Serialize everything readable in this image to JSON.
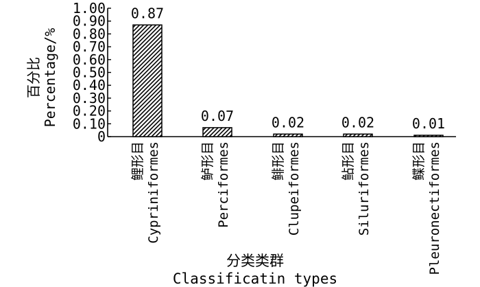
{
  "chart_data": {
    "type": "bar",
    "categories": [
      {
        "zh": "鲤形目",
        "en": "Cypriniformes"
      },
      {
        "zh": "鲈形目",
        "en": "Perciformes"
      },
      {
        "zh": "鲱形目",
        "en": "Clupeiformes"
      },
      {
        "zh": "鲇形目",
        "en": "Siluriformes"
      },
      {
        "zh": "鲽形目",
        "en": "Pleuronectiformes"
      }
    ],
    "values": [
      0.87,
      0.07,
      0.02,
      0.02,
      0.01
    ],
    "value_labels": [
      "0.87",
      "0.07",
      "0.02",
      "0.02",
      "0.01"
    ],
    "ylabel_zh": "百分比",
    "ylabel_en": "Percentage/%",
    "xlabel_zh": "分类类群",
    "xlabel_en": "Classificatin types",
    "ylim": [
      0,
      1.0
    ],
    "yticks": [
      "0",
      "0.10",
      "0.20",
      "0.30",
      "0.40",
      "0.50",
      "0.60",
      "0.70",
      "0.80",
      "0.90",
      "1.00"
    ],
    "bar_pattern": "diagonal-hatch",
    "grid": false,
    "legend": "none",
    "colors": {
      "bar_fill": "#ffffff",
      "hatch": "#000000",
      "axis": "#000000"
    }
  }
}
